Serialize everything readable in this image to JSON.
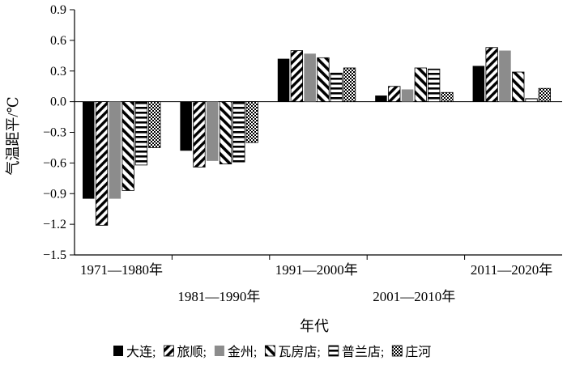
{
  "chart_data": {
    "type": "bar",
    "title": "",
    "xlabel": "年代",
    "ylabel": "气温距平/℃",
    "ylim": [
      -1.5,
      0.9
    ],
    "yticks": [
      "0.9",
      "0.6",
      "0.3",
      "0.0",
      "−0.3",
      "−0.6",
      "−0.9",
      "−1.2",
      "−1.5"
    ],
    "ytick_values": [
      0.9,
      0.6,
      0.3,
      0.0,
      -0.3,
      -0.6,
      -0.9,
      -1.2,
      -1.5
    ],
    "grid": false,
    "legend_position": "bottom",
    "categories": [
      "1971—1980年",
      "1981—1990年",
      "1991—2000年",
      "2001—2010年",
      "2011—2020年"
    ],
    "series": [
      {
        "name": "大连",
        "pattern": "solid-black",
        "values": [
          -0.95,
          -0.48,
          0.42,
          0.06,
          0.35
        ]
      },
      {
        "name": "旅顺",
        "pattern": "diagonal-hatch",
        "values": [
          -1.21,
          -0.64,
          0.5,
          0.15,
          0.53
        ]
      },
      {
        "name": "金州",
        "pattern": "solid-gray",
        "values": [
          -0.95,
          -0.58,
          0.47,
          0.12,
          0.5
        ]
      },
      {
        "name": "瓦房店",
        "pattern": "diagonal-hatch-box",
        "values": [
          -0.87,
          -0.61,
          0.43,
          0.33,
          0.29
        ]
      },
      {
        "name": "普兰店",
        "pattern": "horizontal-lines",
        "values": [
          -0.62,
          -0.59,
          0.28,
          0.32,
          0.03
        ]
      },
      {
        "name": "庄河",
        "pattern": "checker",
        "values": [
          -0.45,
          -0.4,
          0.33,
          0.09,
          0.13
        ]
      }
    ],
    "legend_separator": ";"
  }
}
